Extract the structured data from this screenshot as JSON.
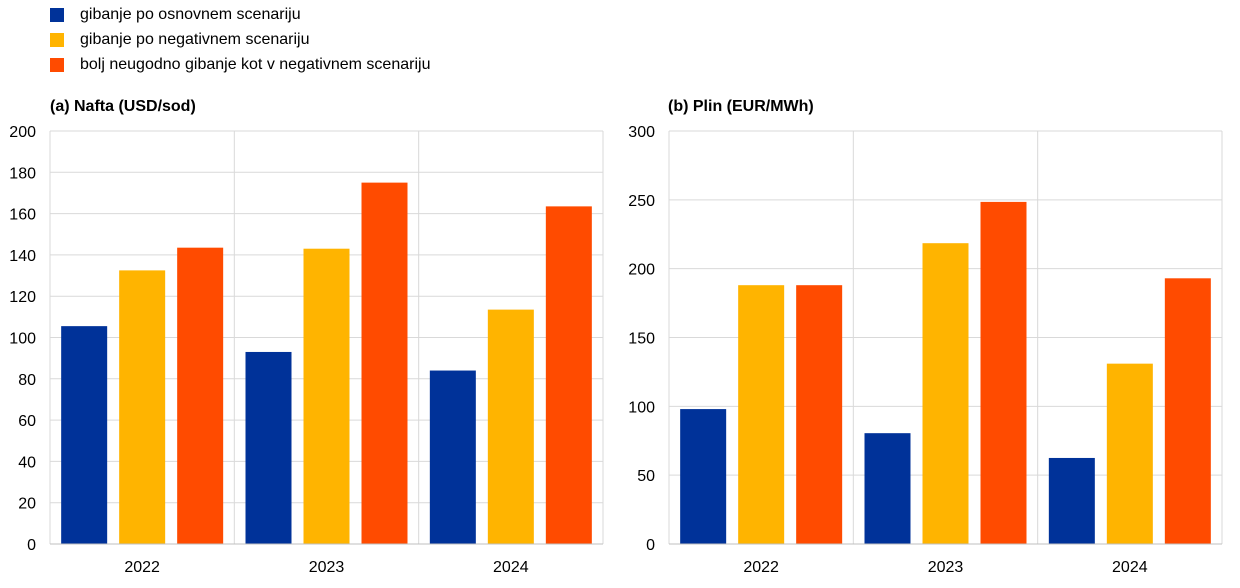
{
  "legend": {
    "items": [
      {
        "label": "gibanje po osnovnem scenariju",
        "color": "#003299"
      },
      {
        "label": "gibanje po negativnem scenariju",
        "color": "#FFB400"
      },
      {
        "label": "bolj neugodno gibanje kot v negativnem scenariju",
        "color": "#FF4B00"
      }
    ]
  },
  "chart_data": [
    {
      "type": "bar",
      "title": "(a) Nafta (USD/sod)",
      "categories": [
        "2022",
        "2023",
        "2024"
      ],
      "series": [
        {
          "name": "gibanje po osnovnem scenariju",
          "color": "#003299",
          "values": [
            105.5,
            93,
            84
          ]
        },
        {
          "name": "gibanje po negativnem scenariju",
          "color": "#FFB400",
          "values": [
            132.5,
            143,
            113.5
          ]
        },
        {
          "name": "bolj neugodno gibanje kot v negativnem scenariju",
          "color": "#FF4B00",
          "values": [
            143.5,
            175,
            163.5
          ]
        }
      ],
      "ylim": [
        0,
        200
      ],
      "yticks": [
        0,
        20,
        40,
        60,
        80,
        100,
        120,
        140,
        160,
        180,
        200
      ],
      "grid": true
    },
    {
      "type": "bar",
      "title": "(b) Plin (EUR/MWh)",
      "categories": [
        "2022",
        "2023",
        "2024"
      ],
      "series": [
        {
          "name": "gibanje po osnovnem scenariju",
          "color": "#003299",
          "values": [
            98,
            80.5,
            62.5
          ]
        },
        {
          "name": "gibanje po negativnem scenariju",
          "color": "#FFB400",
          "values": [
            188,
            218.5,
            131
          ]
        },
        {
          "name": "bolj neugodno gibanje kot v negativnem scenariju",
          "color": "#FF4B00",
          "values": [
            188,
            248.5,
            193
          ]
        }
      ],
      "ylim": [
        0,
        300
      ],
      "yticks": [
        0,
        50,
        100,
        150,
        200,
        250,
        300
      ],
      "grid": true
    }
  ]
}
